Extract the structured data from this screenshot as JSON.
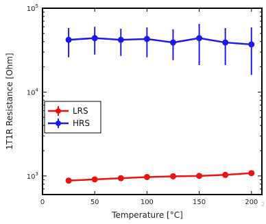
{
  "chart_data": {
    "type": "line",
    "xlabel": "Temperature [°C]",
    "ylabel": "1T1R Resistance [Ohm]",
    "xlim": [
      0,
      210
    ],
    "ylim": [
      600,
      100000
    ],
    "yscale": "log",
    "x_ticks": [
      0,
      50,
      100,
      150,
      200
    ],
    "y_ticks": [
      {
        "value": 1000,
        "base": "10",
        "exp": "3"
      },
      {
        "value": 10000,
        "base": "10",
        "exp": "4"
      },
      {
        "value": 100000,
        "base": "10",
        "exp": "5"
      }
    ],
    "legend_position": "center-left",
    "grid": false,
    "x": [
      25,
      50,
      75,
      100,
      125,
      150,
      175,
      200
    ],
    "series": [
      {
        "name": "LRS",
        "color": "#ee1111",
        "marker": "circle",
        "values": [
          880,
          910,
          940,
          970,
          990,
          1000,
          1030,
          1080
        ],
        "err_low": [
          860,
          890,
          920,
          950,
          970,
          980,
          1010,
          1040
        ],
        "err_high": [
          900,
          930,
          960,
          990,
          1010,
          1020,
          1050,
          1130
        ]
      },
      {
        "name": "HRS",
        "color": "#1a1aee",
        "marker": "circle",
        "values": [
          42000,
          44000,
          42000,
          43000,
          39000,
          44000,
          39000,
          37000
        ],
        "err_low": [
          26000,
          28000,
          27000,
          26000,
          24000,
          21000,
          21000,
          16000
        ],
        "err_high": [
          58000,
          60000,
          57000,
          59000,
          56000,
          65000,
          58000,
          59000
        ]
      }
    ]
  }
}
